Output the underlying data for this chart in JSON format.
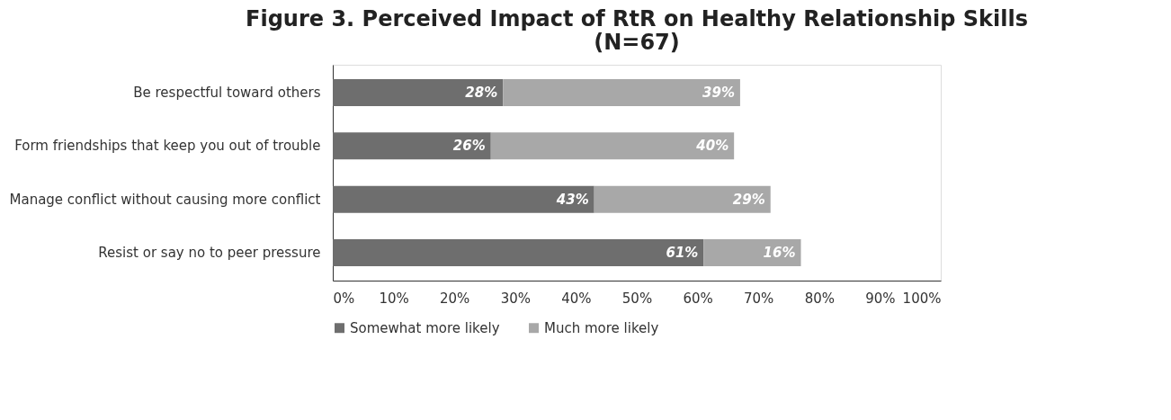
{
  "chart_data": {
    "type": "bar",
    "orientation": "horizontal",
    "stacked": true,
    "title": "Figure 3. Perceived Impact of RtR on Healthy Relationship Skills\n(N=67)",
    "categories": [
      "Be respectful toward others",
      "Form friendships that keep you out of trouble",
      "Manage conflict without causing more conflict",
      "Resist or say no to peer pressure"
    ],
    "series": [
      {
        "name": "Somewhat more likely",
        "color": "#6e6e6e",
        "values": [
          28,
          26,
          43,
          61
        ],
        "value_labels": [
          "28%",
          "26%",
          "43%",
          "61%"
        ]
      },
      {
        "name": "Much more likely",
        "color": "#a8a8a8",
        "values": [
          39,
          40,
          29,
          16
        ],
        "value_labels": [
          "39%",
          "40%",
          "29%",
          "16%"
        ]
      }
    ],
    "xlim": [
      0,
      100
    ],
    "xticks": [
      {
        "value": 0,
        "label": "0%"
      },
      {
        "value": 10,
        "label": "10%"
      },
      {
        "value": 20,
        "label": "20%"
      },
      {
        "value": 30,
        "label": "30%"
      },
      {
        "value": 40,
        "label": "40%"
      },
      {
        "value": 50,
        "label": "50%"
      },
      {
        "value": 60,
        "label": "60%"
      },
      {
        "value": 70,
        "label": "70%"
      },
      {
        "value": 80,
        "label": "80%"
      },
      {
        "value": 90,
        "label": "90%"
      },
      {
        "value": 100,
        "label": "100%"
      }
    ],
    "grid": false,
    "legend": "bottom"
  }
}
